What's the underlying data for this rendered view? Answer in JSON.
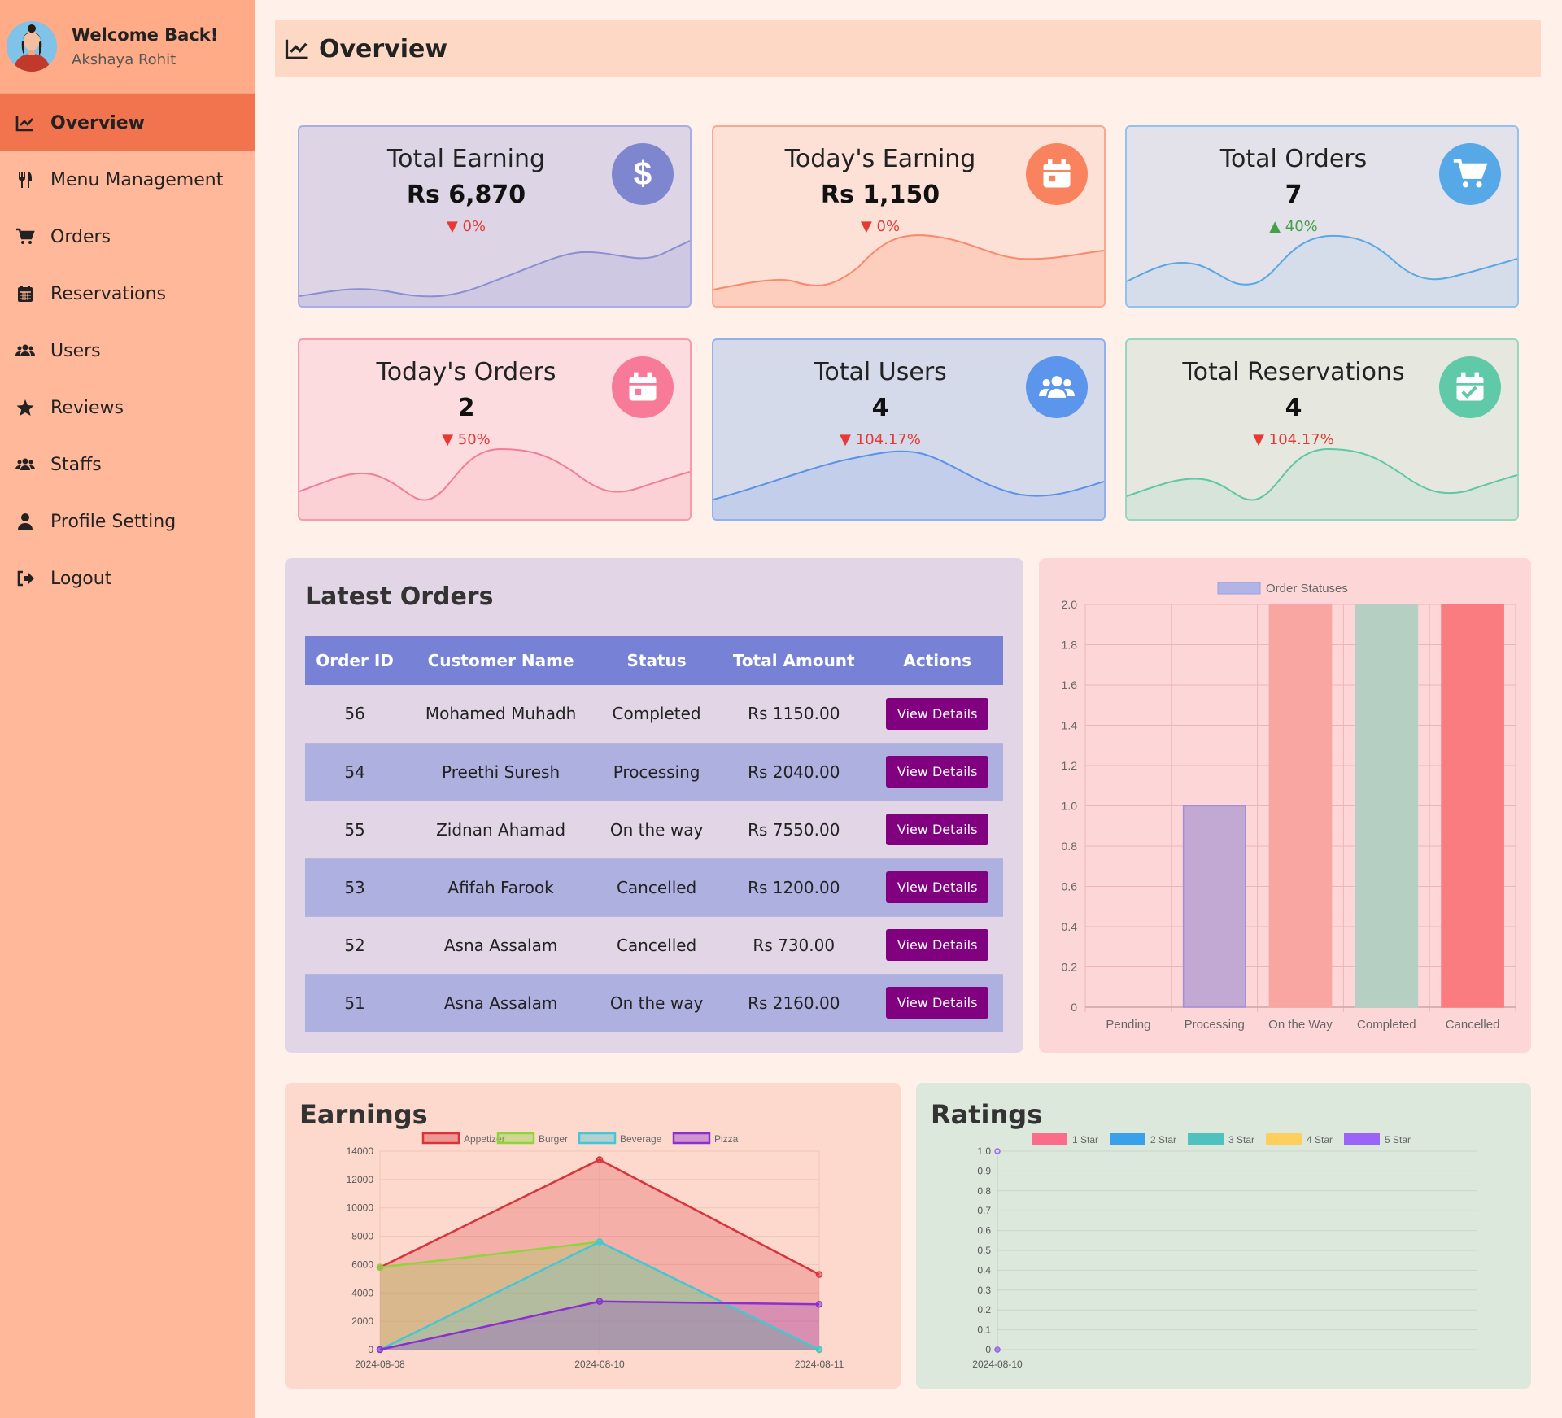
{
  "sidebar": {
    "welcome": "Welcome Back!",
    "username": "Akshaya Rohit",
    "items": [
      {
        "label": "Overview",
        "icon": "chart-line-icon"
      },
      {
        "label": "Menu Management",
        "icon": "utensils-icon"
      },
      {
        "label": "Orders",
        "icon": "cart-icon"
      },
      {
        "label": "Reservations",
        "icon": "calendar-icon"
      },
      {
        "label": "Users",
        "icon": "users-icon"
      },
      {
        "label": "Reviews",
        "icon": "star-icon"
      },
      {
        "label": "Staffs",
        "icon": "users-icon"
      },
      {
        "label": "Profile Setting",
        "icon": "user-icon"
      },
      {
        "label": "Logout",
        "icon": "logout-icon"
      }
    ]
  },
  "header": {
    "title": "Overview"
  },
  "cards": [
    {
      "label": "Total Earning",
      "value": "Rs 6,870",
      "change": "▼ 0%",
      "trend": "down",
      "icon": "dollar-icon",
      "color": "#7f86d0"
    },
    {
      "label": "Today's Earning",
      "value": "Rs 1,150",
      "change": "▼ 0%",
      "trend": "down",
      "icon": "calendar-icon",
      "color": "#f9825f"
    },
    {
      "label": "Total Orders",
      "value": "7",
      "change": "▲ 40%",
      "trend": "up",
      "icon": "cart-icon",
      "color": "#56a8e6"
    },
    {
      "label": "Today's Orders",
      "value": "2",
      "change": "▼ 50%",
      "trend": "down",
      "icon": "calendar-icon",
      "color": "#f77b99"
    },
    {
      "label": "Total Users",
      "value": "4",
      "change": "▼ 104.17%",
      "trend": "down",
      "icon": "users-icon",
      "color": "#5b95ec"
    },
    {
      "label": "Total Reservations",
      "value": "4",
      "change": "▼ 104.17%",
      "trend": "down",
      "icon": "calendar-check-icon",
      "color": "#60c9a8"
    }
  ],
  "orders": {
    "title": "Latest Orders",
    "columns": [
      "Order ID",
      "Customer Name",
      "Status",
      "Total Amount",
      "Actions"
    ],
    "rows": [
      {
        "id": "56",
        "name": "Mohamed Muhadh",
        "status": "Completed",
        "amount": "Rs 1150.00",
        "action": "View Details"
      },
      {
        "id": "54",
        "name": "Preethi Suresh",
        "status": "Processing",
        "amount": "Rs 2040.00",
        "action": "View Details"
      },
      {
        "id": "55",
        "name": "Zidnan Ahamad",
        "status": "On the way",
        "amount": "Rs 7550.00",
        "action": "View Details"
      },
      {
        "id": "53",
        "name": "Afifah Farook",
        "status": "Cancelled",
        "amount": "Rs 1200.00",
        "action": "View Details"
      },
      {
        "id": "52",
        "name": "Asna Assalam",
        "status": "Cancelled",
        "amount": "Rs 730.00",
        "action": "View Details"
      },
      {
        "id": "51",
        "name": "Asna Assalam",
        "status": "On the way",
        "amount": "Rs 2160.00",
        "action": "View Details"
      }
    ]
  },
  "chart_data": [
    {
      "type": "bar",
      "legend": [
        "Order Statuses"
      ],
      "categories": [
        "Pending",
        "Processing",
        "On the Way",
        "Completed",
        "Cancelled"
      ],
      "values": [
        0,
        1,
        2,
        2,
        2
      ],
      "colors": [
        "#c5b0dc",
        "#c1a9d3",
        "#f9a6a2",
        "#b6cfc3",
        "#fb7c80"
      ],
      "ylim": [
        0,
        2
      ],
      "yticks": [
        "0",
        "0.2",
        "0.4",
        "0.6",
        "0.8",
        "1.0",
        "1.2",
        "1.4",
        "1.6",
        "1.8",
        "2.0"
      ]
    },
    {
      "type": "area",
      "title": "Earnings",
      "x": [
        "2024-08-08",
        "2024-08-10",
        "2024-08-11"
      ],
      "ylim": [
        0,
        14000
      ],
      "yticks": [
        "0",
        "2000",
        "4000",
        "6000",
        "8000",
        "10000",
        "12000",
        "14000"
      ],
      "series": [
        {
          "name": "Appetizer",
          "values": [
            5800,
            13400,
            5300
          ],
          "color": "#d9343c"
        },
        {
          "name": "Burger",
          "values": [
            5800,
            7600,
            0
          ],
          "color": "#8fd43d"
        },
        {
          "name": "Beverage",
          "values": [
            0,
            7600,
            0
          ],
          "color": "#44c6d6"
        },
        {
          "name": "Pizza",
          "values": [
            0,
            3400,
            3200
          ],
          "color": "#8b2fd0"
        }
      ]
    },
    {
      "type": "line",
      "title": "Ratings",
      "x": [
        "2024-08-10"
      ],
      "ylim": [
        0,
        1
      ],
      "yticks": [
        "0",
        "0.1",
        "0.2",
        "0.3",
        "0.4",
        "0.5",
        "0.6",
        "0.7",
        "0.8",
        "0.9",
        "1.0"
      ],
      "series": [
        {
          "name": "1 Star",
          "values": [
            0
          ],
          "color": "#fb6c8a"
        },
        {
          "name": "2 Star",
          "values": [
            0
          ],
          "color": "#3aa0ea"
        },
        {
          "name": "3 Star",
          "values": [
            0
          ],
          "color": "#4fc2c0"
        },
        {
          "name": "4 Star",
          "values": [
            0
          ],
          "color": "#fdd05e"
        },
        {
          "name": "5 Star",
          "values": [
            0
          ],
          "color": "#9b64f8"
        }
      ]
    }
  ]
}
